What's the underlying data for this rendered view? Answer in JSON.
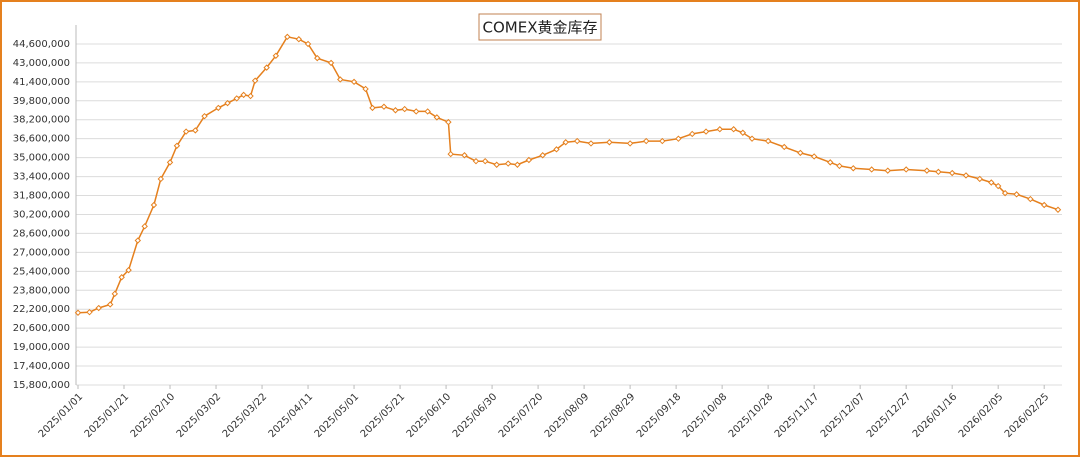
{
  "chart_data": {
    "type": "line",
    "title": "COMEX黄金库存",
    "x": [
      "2025/01/01",
      "2025/01/06",
      "2025/01/10",
      "2025/01/15",
      "2025/01/17",
      "2025/01/20",
      "2025/01/23",
      "2025/01/27",
      "2025/01/30",
      "2025/02/03",
      "2025/02/06",
      "2025/02/10",
      "2025/02/13",
      "2025/02/17",
      "2025/02/21",
      "2025/02/25",
      "2025/03/03",
      "2025/03/07",
      "2025/03/11",
      "2025/03/14",
      "2025/03/17",
      "2025/03/19",
      "2025/03/24",
      "2025/03/28",
      "2025/04/02",
      "2025/04/07",
      "2025/04/11",
      "2025/04/15",
      "2025/04/21",
      "2025/04/25",
      "2025/05/01",
      "2025/05/06",
      "2025/05/09",
      "2025/05/14",
      "2025/05/19",
      "2025/05/23",
      "2025/05/28",
      "2025/06/02",
      "2025/06/06",
      "2025/06/11",
      "2025/06/12",
      "2025/06/18",
      "2025/06/23",
      "2025/06/27",
      "2025/07/02",
      "2025/07/07",
      "2025/07/11",
      "2025/07/16",
      "2025/07/22",
      "2025/07/28",
      "2025/08/01",
      "2025/08/06",
      "2025/08/12",
      "2025/08/20",
      "2025/08/29",
      "2025/09/05",
      "2025/09/12",
      "2025/09/19",
      "2025/09/25",
      "2025/10/01",
      "2025/10/07",
      "2025/10/13",
      "2025/10/17",
      "2025/10/21",
      "2025/10/28",
      "2025/11/04",
      "2025/11/11",
      "2025/11/17",
      "2025/11/24",
      "2025/11/28",
      "2025/12/04",
      "2025/12/12",
      "2025/12/19",
      "2025/12/27",
      "2026/01/05",
      "2026/01/10",
      "2026/01/16",
      "2026/01/22",
      "2026/01/28",
      "2026/02/02",
      "2026/02/05",
      "2026/02/08",
      "2026/02/13",
      "2026/02/19",
      "2026/02/25",
      "2026/03/03"
    ],
    "series": [
      {
        "name": "COMEX黄金库存",
        "color": "#e5801e",
        "values": [
          21900000,
          21950000,
          22300000,
          22600000,
          23500000,
          24900000,
          25500000,
          28000000,
          29200000,
          31000000,
          33200000,
          34600000,
          36000000,
          37200000,
          37300000,
          38500000,
          39200000,
          39600000,
          40000000,
          40300000,
          40200000,
          41500000,
          42600000,
          43600000,
          45200000,
          45000000,
          44600000,
          43400000,
          43000000,
          41600000,
          41400000,
          40800000,
          39200000,
          39300000,
          39000000,
          39100000,
          38900000,
          38900000,
          38400000,
          38000000,
          35300000,
          35200000,
          34700000,
          34700000,
          34400000,
          34500000,
          34400000,
          34800000,
          35200000,
          35700000,
          36300000,
          36400000,
          36200000,
          36300000,
          36200000,
          36400000,
          36400000,
          36600000,
          37000000,
          37200000,
          37400000,
          37400000,
          37100000,
          36600000,
          36400000,
          35900000,
          35400000,
          35100000,
          34600000,
          34300000,
          34100000,
          34000000,
          33900000,
          34000000,
          33900000,
          33800000,
          33700000,
          33500000,
          33200000,
          32900000,
          32600000,
          32000000,
          31900000,
          31500000,
          31000000,
          30600000
        ]
      }
    ],
    "xlim": [
      "2025/01/01",
      "2026/03/03"
    ],
    "xticks": [
      "2025/01/01",
      "2025/01/21",
      "2025/02/10",
      "2025/03/02",
      "2025/03/22",
      "2025/04/11",
      "2025/05/01",
      "2025/05/21",
      "2025/06/10",
      "2025/06/30",
      "2025/07/20",
      "2025/08/09",
      "2025/08/29",
      "2025/09/18",
      "2025/10/08",
      "2025/10/28",
      "2025/11/17",
      "2025/12/07",
      "2025/12/27",
      "2026/01/16",
      "2026/02/05",
      "2026/02/25"
    ],
    "ylim": [
      15800000,
      46200000
    ],
    "yticks": [
      {
        "value": 15800000,
        "label": "15,800,000"
      },
      {
        "value": 17400000,
        "label": "17,400,000"
      },
      {
        "value": 19000000,
        "label": "19,000,000"
      },
      {
        "value": 20600000,
        "label": "20,600,000"
      },
      {
        "value": 22200000,
        "label": "22,200,000"
      },
      {
        "value": 23800000,
        "label": "23,800,000"
      },
      {
        "value": 25400000,
        "label": "25,400,000"
      },
      {
        "value": 27000000,
        "label": "27,000,000"
      },
      {
        "value": 28600000,
        "label": "28,600,000"
      },
      {
        "value": 30200000,
        "label": "30,200,000"
      },
      {
        "value": 31800000,
        "label": "31,800,000"
      },
      {
        "value": 33400000,
        "label": "33,400,000"
      },
      {
        "value": 35000000,
        "label": "35,000,000"
      },
      {
        "value": 36600000,
        "label": "36,600,000"
      },
      {
        "value": 38200000,
        "label": "38,200,000"
      },
      {
        "value": 39800000,
        "label": "39,800,000"
      },
      {
        "value": 41400000,
        "label": "41,400,000"
      },
      {
        "value": 43000000,
        "label": "43,000,000"
      },
      {
        "value": 44600000,
        "label": "44,600,000"
      }
    ],
    "grid": true
  }
}
